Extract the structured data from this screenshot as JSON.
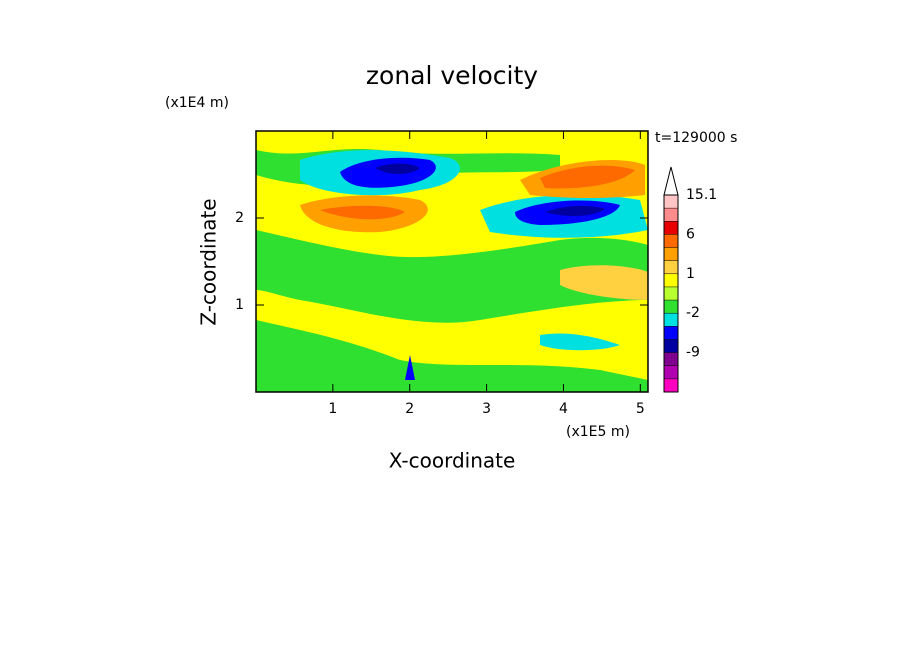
{
  "chart_data": {
    "type": "contour",
    "title": "zonal velocity",
    "x_label": "X-coordinate",
    "y_label": "Z-coordinate",
    "x_unit": "(x1E5 m)",
    "y_unit": "(x1E4 m)",
    "annotation": "t=129000 s",
    "xlim": [
      0,
      5.1
    ],
    "xticks": [
      1,
      2,
      3,
      4,
      5
    ],
    "ylim": [
      0,
      3
    ],
    "yticks": [
      1,
      2
    ],
    "colorbar": {
      "levels": [
        15.1,
        12,
        9,
        6,
        3,
        2,
        1,
        0,
        -1,
        -2,
        -4,
        -6,
        -9,
        -12,
        -15,
        -18
      ],
      "colors": [
        "#ffc4c4",
        "#ff8c8c",
        "#e80000",
        "#ff6a00",
        "#ffa000",
        "#ffd040",
        "#ffff00",
        "#b8ff30",
        "#30e030",
        "#00e0e0",
        "#0000ff",
        "#0000a0",
        "#800090",
        "#b000b0",
        "#ff00c0"
      ],
      "ticks": [
        15.1,
        6,
        1,
        -2,
        -9
      ],
      "extend": "max",
      "extend_color": "#ffffff"
    }
  }
}
